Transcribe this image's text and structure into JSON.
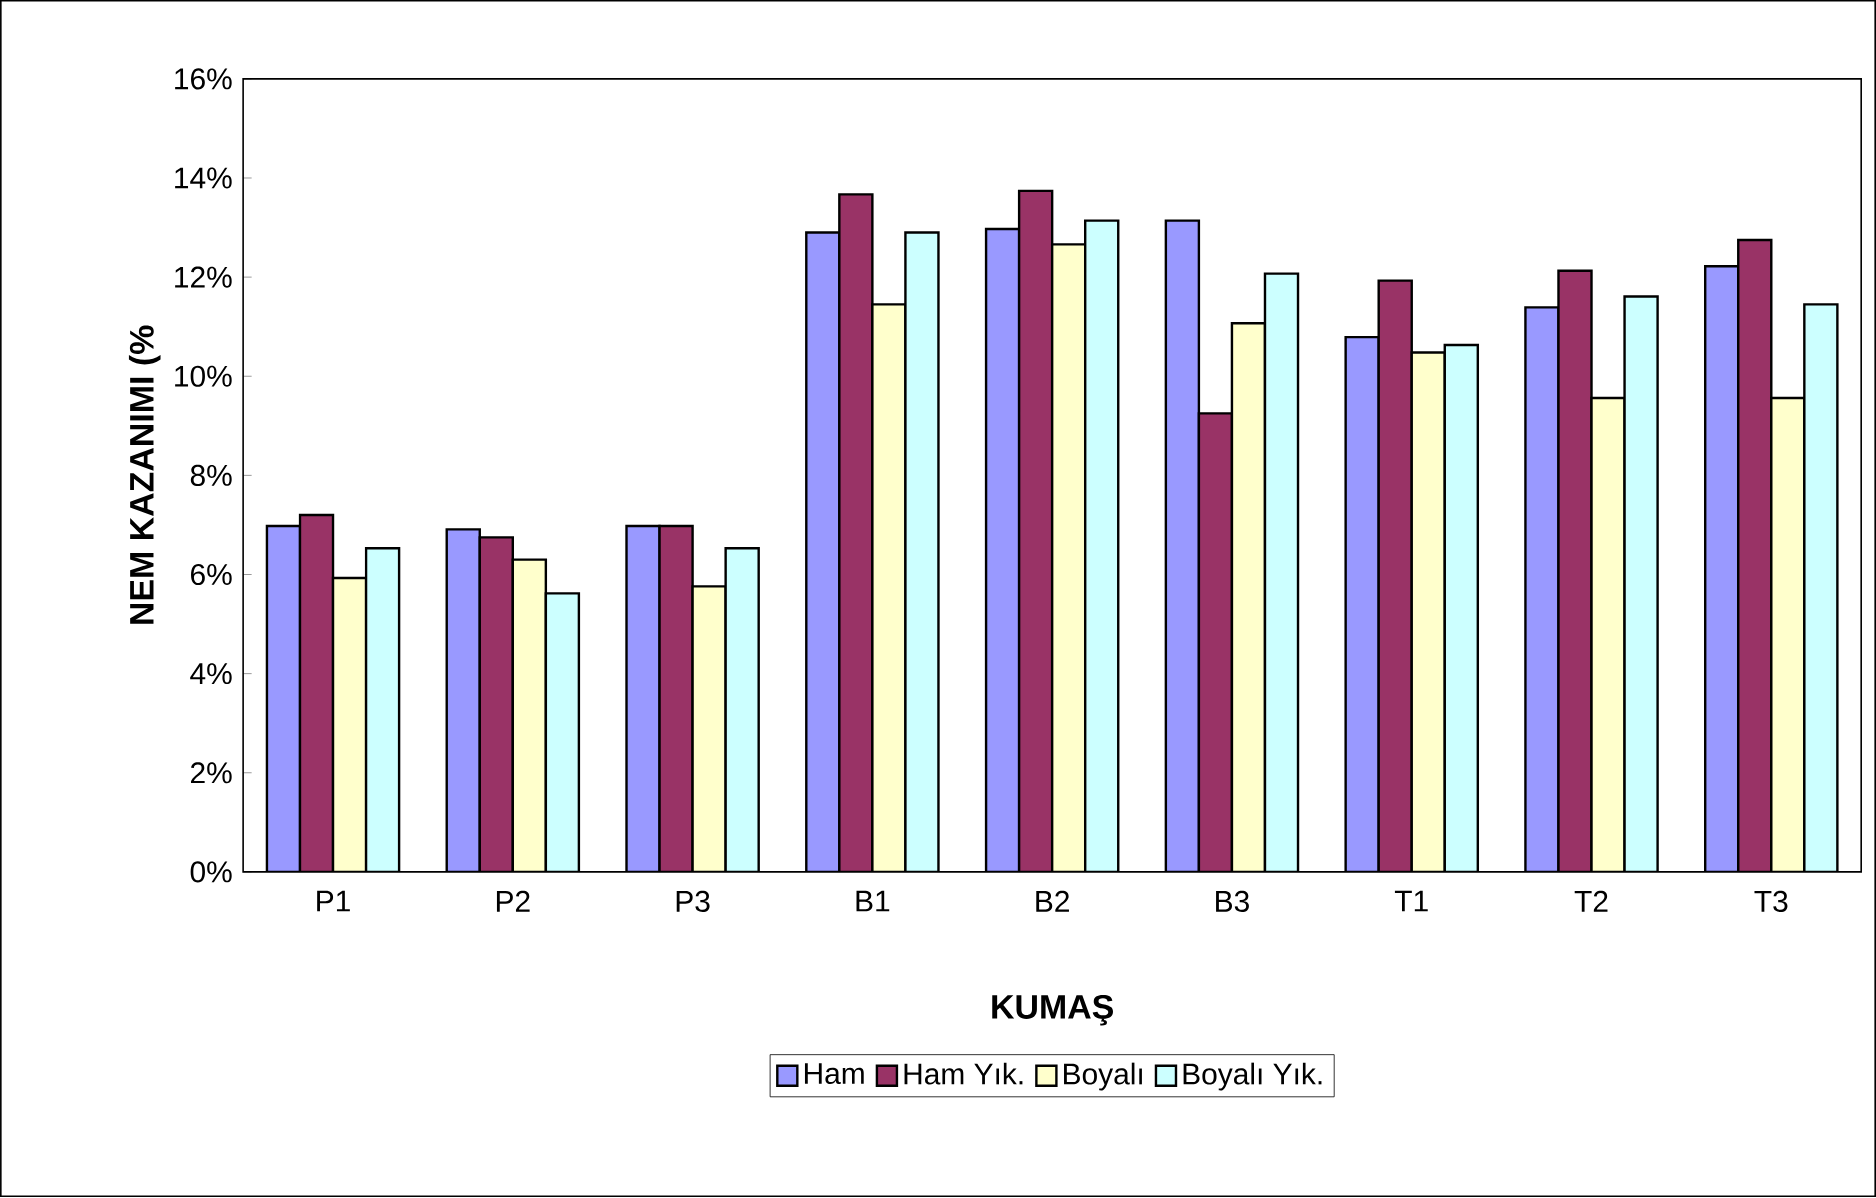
{
  "chart_data": {
    "type": "bar",
    "xlabel": "KUMAŞ",
    "ylabel": "NEM KAZANIMI (%",
    "categories": [
      "P1",
      "P2",
      "P3",
      "B1",
      "B2",
      "B3",
      "T1",
      "T2",
      "T3"
    ],
    "series": [
      {
        "name": "Ham",
        "color": "#9999ff",
        "values": [
          6.98,
          6.91,
          6.98,
          12.9,
          12.97,
          13.14,
          10.79,
          11.39,
          12.22
        ]
      },
      {
        "name": "Ham Yık.",
        "color": "#993366",
        "values": [
          7.2,
          6.75,
          6.98,
          13.67,
          13.74,
          9.25,
          11.93,
          12.13,
          12.75
        ]
      },
      {
        "name": "Boyalı",
        "color": "#ffffcc",
        "values": [
          5.93,
          6.3,
          5.76,
          11.45,
          12.66,
          11.07,
          10.48,
          9.56,
          9.56
        ]
      },
      {
        "name": "Boyalı Yık.",
        "color": "#ccffff",
        "values": [
          6.53,
          5.62,
          6.53,
          12.9,
          13.14,
          12.07,
          10.63,
          11.61,
          11.45
        ]
      }
    ],
    "ylim": [
      0,
      16
    ],
    "yticks": [
      {
        "value": 0,
        "label": "0%"
      },
      {
        "value": 2,
        "label": "2%"
      },
      {
        "value": 4,
        "label": "4%"
      },
      {
        "value": 6,
        "label": "6%"
      },
      {
        "value": 8,
        "label": "8%"
      },
      {
        "value": 10,
        "label": "10%"
      },
      {
        "value": 12,
        "label": "12%"
      },
      {
        "value": 14,
        "label": "14%"
      },
      {
        "value": 16,
        "label": "16%"
      }
    ],
    "grid": false,
    "legend": "bottom"
  }
}
